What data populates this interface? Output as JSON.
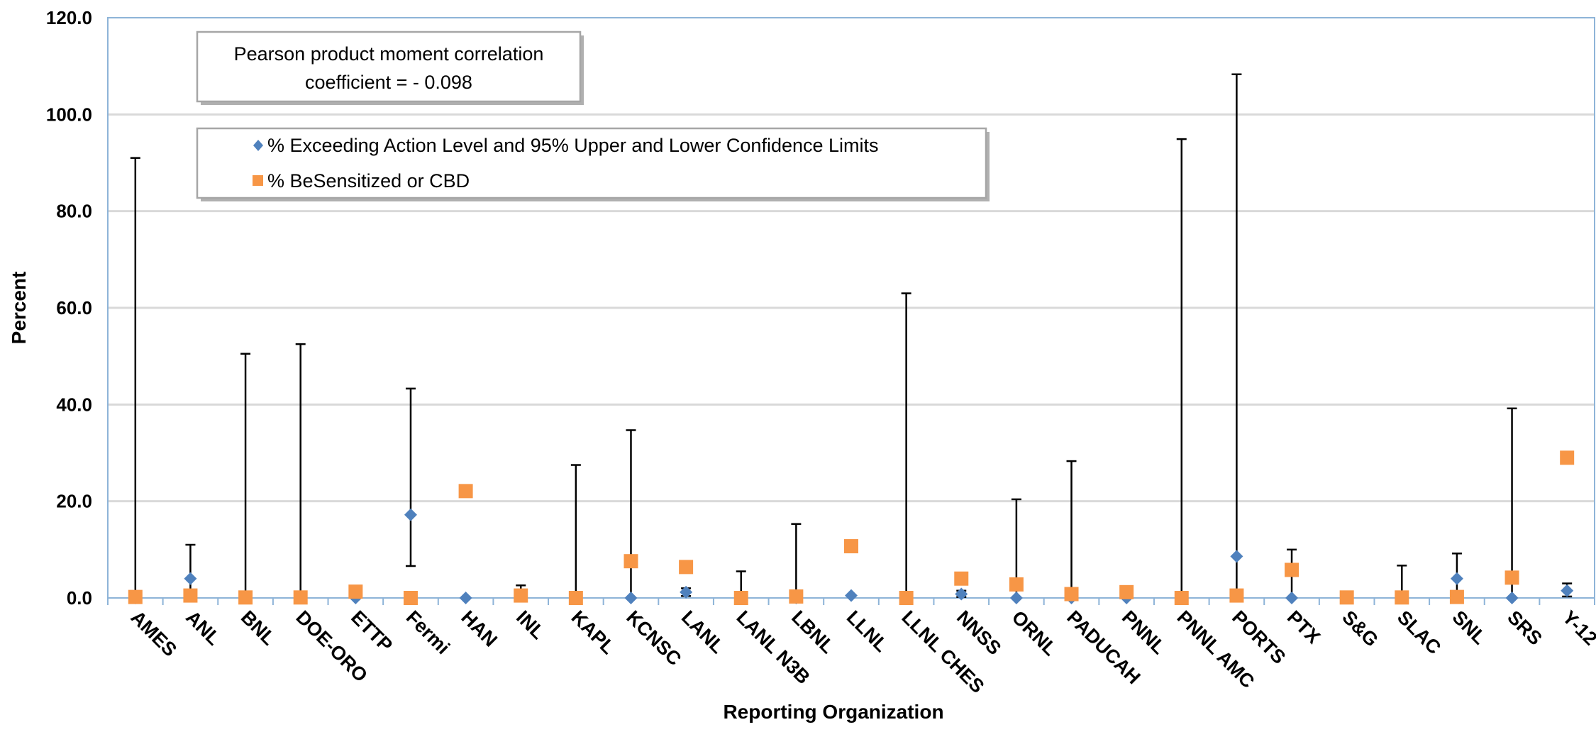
{
  "chart_data": {
    "type": "scatter",
    "title": "",
    "xlabel": "Reporting Organization",
    "ylabel": "Percent",
    "ylim": [
      0,
      120
    ],
    "yticks": [
      "0.0",
      "20.0",
      "40.0",
      "60.0",
      "80.0",
      "100.0",
      "120.0"
    ],
    "grid": true,
    "categories": [
      "AMES",
      "ANL",
      "BNL",
      "DOE-ORO",
      "ETTP",
      "Fermi",
      "HAN",
      "INL",
      "KAPL",
      "KCNSC",
      "LANL",
      "LANL N3B",
      "LBNL",
      "LLNL",
      "LLNL CHES",
      "NNSS",
      "ORNL",
      "PADUCAH",
      "PNNL",
      "PNNL AMC",
      "PORTS",
      "PTX",
      "S&G",
      "SLAC",
      "SNL",
      "SRS",
      "Y-12"
    ],
    "series": [
      {
        "name": "% Exceeding Action Level and 95% Upper and Lower Confidence Limits",
        "marker": "diamond",
        "color": "#4F81BD",
        "values": [
          0,
          4,
          0,
          0,
          0,
          17.2,
          0,
          0.5,
          0,
          0,
          1.2,
          0,
          0,
          0.5,
          0,
          0.8,
          0,
          0,
          0,
          0,
          8.6,
          0,
          0,
          0,
          4,
          0,
          1.5
        ],
        "upper": [
          91,
          11,
          50.5,
          52.5,
          0,
          43.3,
          0,
          2.6,
          27.5,
          34.7,
          2,
          5.5,
          15.3,
          0,
          63,
          1.5,
          20.4,
          28.3,
          0,
          94.9,
          108.3,
          10,
          0,
          6.7,
          9.2,
          39.2,
          3
        ],
        "lower": [
          0,
          1.5,
          0,
          0,
          0,
          6.6,
          0,
          0,
          0,
          0,
          0.4,
          0,
          0,
          0,
          0,
          0.2,
          0,
          0,
          0,
          0,
          0,
          0,
          0,
          0,
          1.3,
          0,
          0.3
        ]
      },
      {
        "name": "% BeSensitized or CBD",
        "marker": "square",
        "color": "#F79646",
        "values": [
          0.2,
          0.5,
          0.1,
          0.1,
          1.3,
          0,
          22.1,
          0.5,
          0,
          7.6,
          6.4,
          0,
          0.3,
          10.7,
          0,
          4,
          2.8,
          0.8,
          1.2,
          0,
          0.5,
          5.8,
          0.1,
          0.1,
          0.2,
          4.2,
          29
        ]
      }
    ],
    "annotation": {
      "line1": "Pearson product moment correlation",
      "line2": "coefficient = - 0.098"
    }
  }
}
